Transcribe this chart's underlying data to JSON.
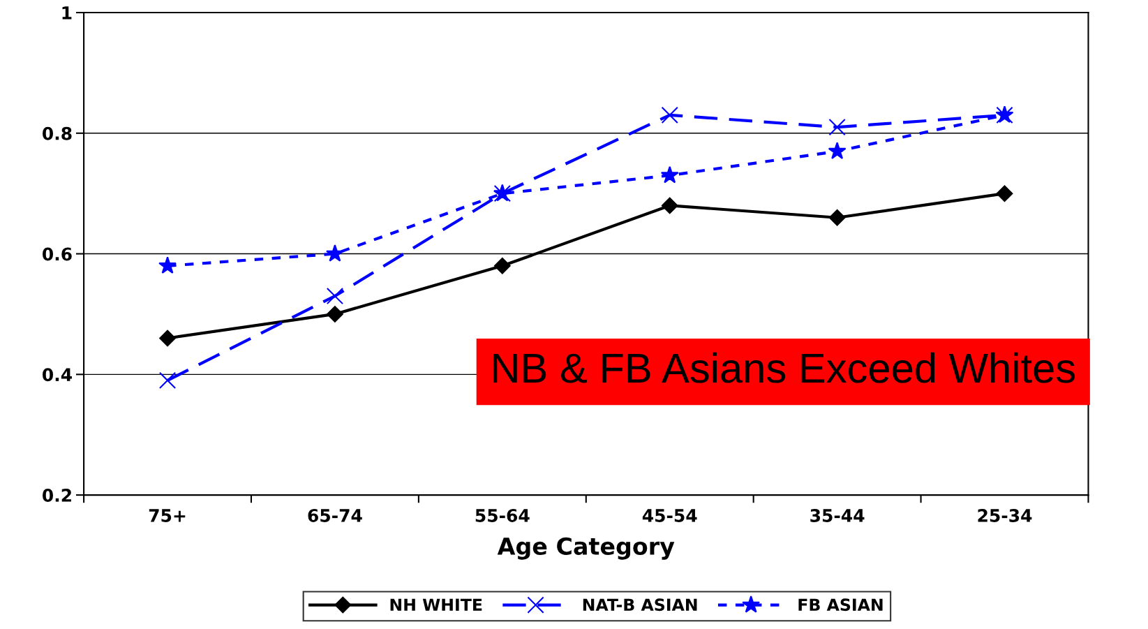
{
  "chart_data": {
    "type": "line",
    "xlabel": "Age Category",
    "categories": [
      "75+",
      "65-74",
      "55-64",
      "45-54",
      "35-44",
      "25-34"
    ],
    "series": [
      {
        "name": "NH WHITE",
        "color": "#000000",
        "marker": "diamond",
        "line_style": "solid",
        "values": [
          0.46,
          0.5,
          0.58,
          0.68,
          0.66,
          0.7
        ]
      },
      {
        "name": "NAT-B ASIAN",
        "color": "#0000ff",
        "marker": "cross",
        "line_style": "dashed",
        "values": [
          0.39,
          0.53,
          0.7,
          0.83,
          0.81,
          0.83
        ]
      },
      {
        "name": "FB ASIAN",
        "color": "#0000ff",
        "marker": "star",
        "line_style": "dotted",
        "values": [
          0.58,
          0.6,
          0.7,
          0.73,
          0.77,
          0.83
        ]
      }
    ],
    "ylim": [
      0.2,
      1
    ],
    "yticks": [
      0.2,
      0.4,
      0.6,
      0.8,
      1
    ],
    "grid": "y",
    "legend": "bottom",
    "annotations": [
      "NB & FB Asians Exceed Whites"
    ]
  }
}
